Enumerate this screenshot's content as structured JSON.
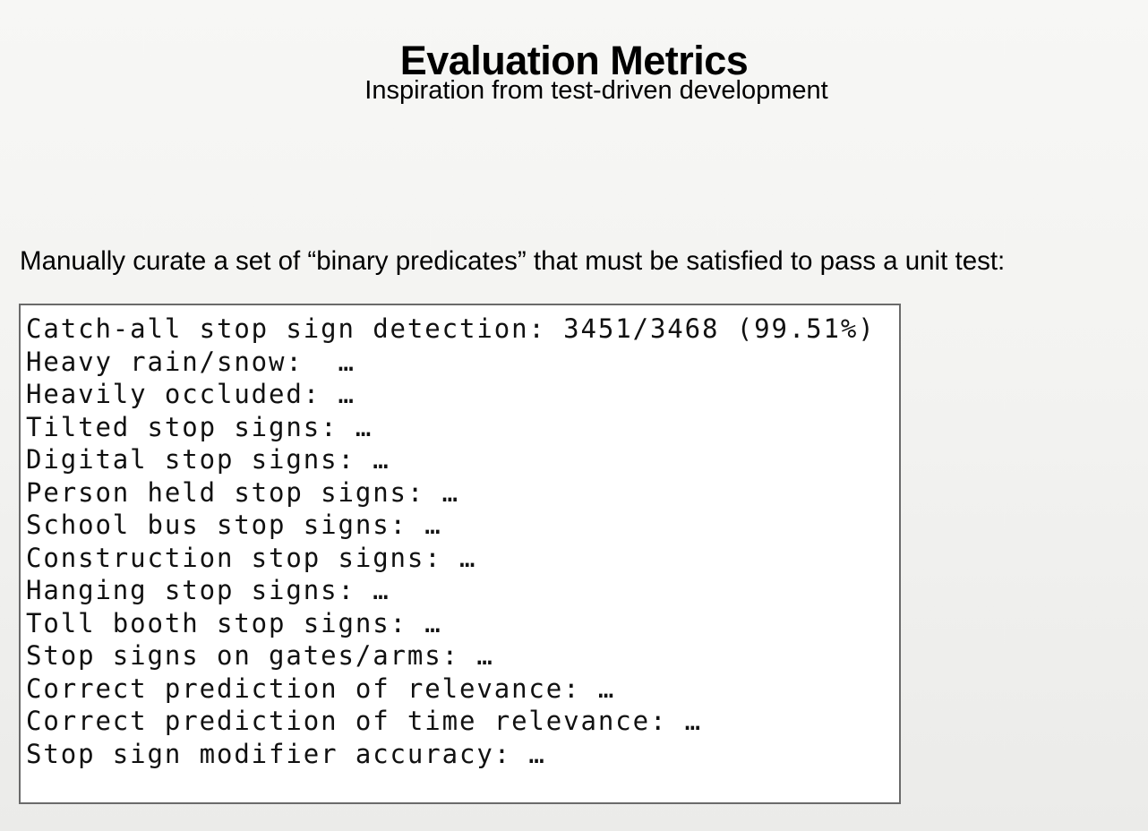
{
  "slide": {
    "title": "Evaluation Metrics",
    "subtitle": "Inspiration from test-driven development",
    "intro": "Manually curate a set of “binary predicates” that must be satisfied to pass a unit test:"
  },
  "predicates": [
    "Catch-all stop sign detection: 3451/3468 (99.51%)",
    "Heavy rain/snow:  …",
    "Heavily occluded: …",
    "Tilted stop signs: …",
    "Digital stop signs: …",
    "Person held stop signs: …",
    "School bus stop signs: …",
    "Construction stop signs: …",
    "Hanging stop signs: …",
    "Toll booth stop signs: …",
    "Stop signs on gates/arms: …",
    "Correct prediction of relevance: …",
    "Correct prediction of time relevance: …",
    "Stop sign modifier accuracy: …"
  ]
}
